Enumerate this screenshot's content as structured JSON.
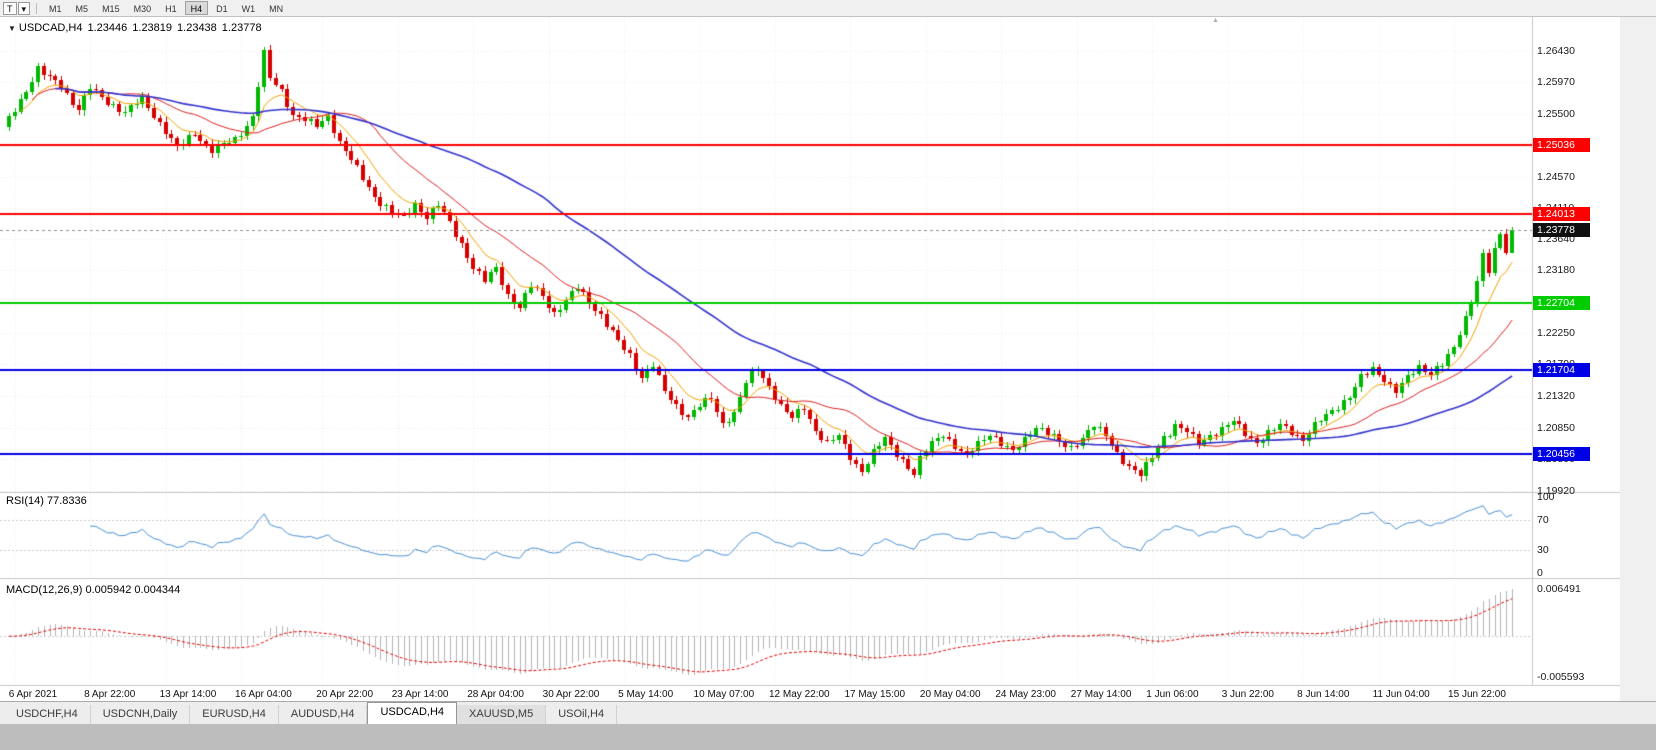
{
  "toolbar": {
    "chart_tool_label": "T",
    "dropdown_icon": "▾",
    "timeframes": [
      "M1",
      "M5",
      "M15",
      "M30",
      "H1",
      "H4",
      "D1",
      "W1",
      "MN"
    ],
    "active_timeframe": "H4"
  },
  "chart": {
    "collapse_icon": "▼",
    "symbol_title": "USDCAD,H4",
    "ohlc": {
      "o": "1.23446",
      "h": "1.23819",
      "l": "1.23438",
      "c": "1.23778"
    }
  },
  "chart_data": {
    "type": "candlestick",
    "symbol": "USDCAD",
    "timeframe": "H4",
    "num_candles": 260,
    "colors": {
      "bull": "#00b800",
      "bear": "#d60000",
      "ma_fast": "#f2a200",
      "ma_mid": "#dd2222",
      "ma_slow": "#3333cc",
      "rsi": "#4a90d2",
      "macd_hist": "#b4b4b4",
      "macd_signal": "#e00000",
      "grid": "#ebebeb",
      "separator": "#c6c6c6",
      "current_line": "#909090"
    },
    "y_axis": {
      "ticks": [
        "1.26430",
        "1.25970",
        "1.25500",
        "1.25030",
        "1.24570",
        "1.24110",
        "1.23640",
        "1.23180",
        "1.22710",
        "1.22250",
        "1.21790",
        "1.21320",
        "1.20850",
        "1.20390",
        "1.19920"
      ]
    },
    "x_labels": [
      {
        "text": "6 Apr 2021",
        "i": 1
      },
      {
        "text": "8 Apr 22:00",
        "i": 14
      },
      {
        "text": "13 Apr 14:00",
        "i": 27
      },
      {
        "text": "16 Apr 04:00",
        "i": 40
      },
      {
        "text": "20 Apr 22:00",
        "i": 54
      },
      {
        "text": "23 Apr 14:00",
        "i": 67
      },
      {
        "text": "28 Apr 04:00",
        "i": 80
      },
      {
        "text": "30 Apr 22:00",
        "i": 93
      },
      {
        "text": "5 May 14:00",
        "i": 106
      },
      {
        "text": "10 May 07:00",
        "i": 119
      },
      {
        "text": "12 May 22:00",
        "i": 132
      },
      {
        "text": "17 May 15:00",
        "i": 145
      },
      {
        "text": "20 May 04:00",
        "i": 158
      },
      {
        "text": "24 May 23:00",
        "i": 171
      },
      {
        "text": "27 May 14:00",
        "i": 184
      },
      {
        "text": "1 Jun 06:00",
        "i": 197
      },
      {
        "text": "3 Jun 22:00",
        "i": 210
      },
      {
        "text": "8 Jun 14:00",
        "i": 223
      },
      {
        "text": "11 Jun 04:00",
        "i": 236
      },
      {
        "text": "15 Jun 22:00",
        "i": 249
      }
    ],
    "horizontal_lines": [
      {
        "label": "1.25036",
        "value": 1.25036,
        "color": "#ff0000"
      },
      {
        "label": "1.24013",
        "value": 1.24013,
        "color": "#ff0000"
      },
      {
        "label": "1.22704",
        "value": 1.22704,
        "color": "#00cc00"
      },
      {
        "label": "1.21704",
        "value": 1.21704,
        "color": "#0000e6"
      },
      {
        "label": "1.20456",
        "value": 1.20456,
        "color": "#0000e6"
      }
    ],
    "current_price": {
      "label": "1.23778",
      "value": 1.23778
    },
    "price_path": [
      [
        0,
        1.2528
      ],
      [
        3,
        1.2572
      ],
      [
        6,
        1.2615
      ],
      [
        8,
        1.2602
      ],
      [
        10,
        1.2592
      ],
      [
        13,
        1.2556
      ],
      [
        15,
        1.2588
      ],
      [
        18,
        1.2568
      ],
      [
        21,
        1.2552
      ],
      [
        24,
        1.2572
      ],
      [
        27,
        1.2537
      ],
      [
        30,
        1.2498
      ],
      [
        33,
        1.2523
      ],
      [
        36,
        1.2495
      ],
      [
        40,
        1.2512
      ],
      [
        43,
        1.2545
      ],
      [
        45,
        1.2638
      ],
      [
        46,
        1.2602
      ],
      [
        48,
        1.2585
      ],
      [
        50,
        1.2548
      ],
      [
        54,
        1.2532
      ],
      [
        56,
        1.2548
      ],
      [
        58,
        1.2508
      ],
      [
        61,
        1.2468
      ],
      [
        64,
        1.2428
      ],
      [
        67,
        1.2402
      ],
      [
        69,
        1.2395
      ],
      [
        71,
        1.2418
      ],
      [
        73,
        1.2398
      ],
      [
        75,
        1.2414
      ],
      [
        77,
        1.2388
      ],
      [
        79,
        1.2358
      ],
      [
        81,
        1.2322
      ],
      [
        83,
        1.2302
      ],
      [
        85,
        1.2322
      ],
      [
        87,
        1.2282
      ],
      [
        89,
        1.2262
      ],
      [
        91,
        1.2295
      ],
      [
        93,
        1.2282
      ],
      [
        95,
        1.2255
      ],
      [
        97,
        1.2272
      ],
      [
        99,
        1.2292
      ],
      [
        101,
        1.2272
      ],
      [
        103,
        1.2252
      ],
      [
        106,
        1.2212
      ],
      [
        108,
        1.2192
      ],
      [
        110,
        1.2162
      ],
      [
        112,
        1.2178
      ],
      [
        114,
        1.2138
      ],
      [
        116,
        1.2118
      ],
      [
        118,
        1.2102
      ],
      [
        120,
        1.2118
      ],
      [
        122,
        1.2128
      ],
      [
        124,
        1.2092
      ],
      [
        126,
        1.2108
      ],
      [
        128,
        1.2152
      ],
      [
        130,
        1.2172
      ],
      [
        132,
        1.2148
      ],
      [
        134,
        1.2118
      ],
      [
        136,
        1.2098
      ],
      [
        138,
        1.2115
      ],
      [
        140,
        1.2082
      ],
      [
        142,
        1.2062
      ],
      [
        144,
        1.2072
      ],
      [
        146,
        1.2042
      ],
      [
        148,
        1.2022
      ],
      [
        150,
        1.2048
      ],
      [
        152,
        1.2068
      ],
      [
        154,
        1.2048
      ],
      [
        156,
        1.2028
      ],
      [
        157,
        1.2016
      ],
      [
        158,
        1.2038
      ],
      [
        160,
        1.2062
      ],
      [
        162,
        1.2078
      ],
      [
        164,
        1.2058
      ],
      [
        166,
        1.2042
      ],
      [
        168,
        1.2062
      ],
      [
        170,
        1.2078
      ],
      [
        172,
        1.2062
      ],
      [
        174,
        1.2048
      ],
      [
        176,
        1.2068
      ],
      [
        178,
        1.2088
      ],
      [
        180,
        1.2078
      ],
      [
        182,
        1.2062
      ],
      [
        184,
        1.2055
      ],
      [
        186,
        1.2072
      ],
      [
        188,
        1.2088
      ],
      [
        190,
        1.2072
      ],
      [
        192,
        1.2048
      ],
      [
        194,
        1.2028
      ],
      [
        196,
        1.2014
      ],
      [
        198,
        1.2042
      ],
      [
        200,
        1.2072
      ],
      [
        202,
        1.2088
      ],
      [
        204,
        1.2078
      ],
      [
        206,
        1.2062
      ],
      [
        208,
        1.2075
      ],
      [
        210,
        1.2082
      ],
      [
        212,
        1.2094
      ],
      [
        214,
        1.2078
      ],
      [
        216,
        1.2064
      ],
      [
        218,
        1.2076
      ],
      [
        220,
        1.2088
      ],
      [
        222,
        1.208
      ],
      [
        224,
        1.2068
      ],
      [
        226,
        1.2088
      ],
      [
        228,
        1.2102
      ],
      [
        230,
        1.2118
      ],
      [
        232,
        1.2132
      ],
      [
        234,
        1.2158
      ],
      [
        236,
        1.2172
      ],
      [
        238,
        1.2158
      ],
      [
        240,
        1.214
      ],
      [
        242,
        1.2158
      ],
      [
        244,
        1.2175
      ],
      [
        246,
        1.2168
      ],
      [
        248,
        1.218
      ],
      [
        250,
        1.22
      ],
      [
        252,
        1.2248
      ],
      [
        254,
        1.2305
      ],
      [
        255,
        1.2342
      ],
      [
        256,
        1.2315
      ],
      [
        257,
        1.2352
      ],
      [
        258,
        1.2372
      ],
      [
        259,
        1.23446
      ],
      [
        260,
        1.23778
      ]
    ],
    "wick_overrides": {
      "45": {
        "h": 1.2652
      },
      "157": {
        "l": 1.2009
      },
      "196": {
        "l": 1.2007
      }
    },
    "last_candle": {
      "o": 1.23446,
      "h": 1.23819,
      "l": 1.23438,
      "c": 1.23778
    },
    "moving_averages": [
      {
        "type": "ema",
        "period": 8
      },
      {
        "type": "sma",
        "period": 20
      },
      {
        "type": "sma",
        "period": 50
      }
    ],
    "indicators": {
      "rsi": {
        "label": "RSI(14) 77.8336",
        "period": 14,
        "current": 77.8336,
        "axis_labels": [
          "100",
          "70",
          "30",
          "0"
        ],
        "levels": [
          70,
          30
        ]
      },
      "macd": {
        "label": "MACD(12,26,9) 0.005942 0.004344",
        "fast": 12,
        "slow": 26,
        "signal_period": 9,
        "current_macd": 0.005942,
        "current_signal": 0.004344,
        "axis_max": "0.006491",
        "axis_min": "-0.005593"
      }
    }
  },
  "tabs": {
    "items": [
      "USDCHF,H4",
      "USDCNH,Daily",
      "EURUSD,H4",
      "AUDUSD,H4",
      "USDCAD,H4",
      "XAUUSD,M5",
      "USOil,H4"
    ],
    "active": "USDCAD,H4",
    "highlighted": "XAUUSD,M5"
  }
}
